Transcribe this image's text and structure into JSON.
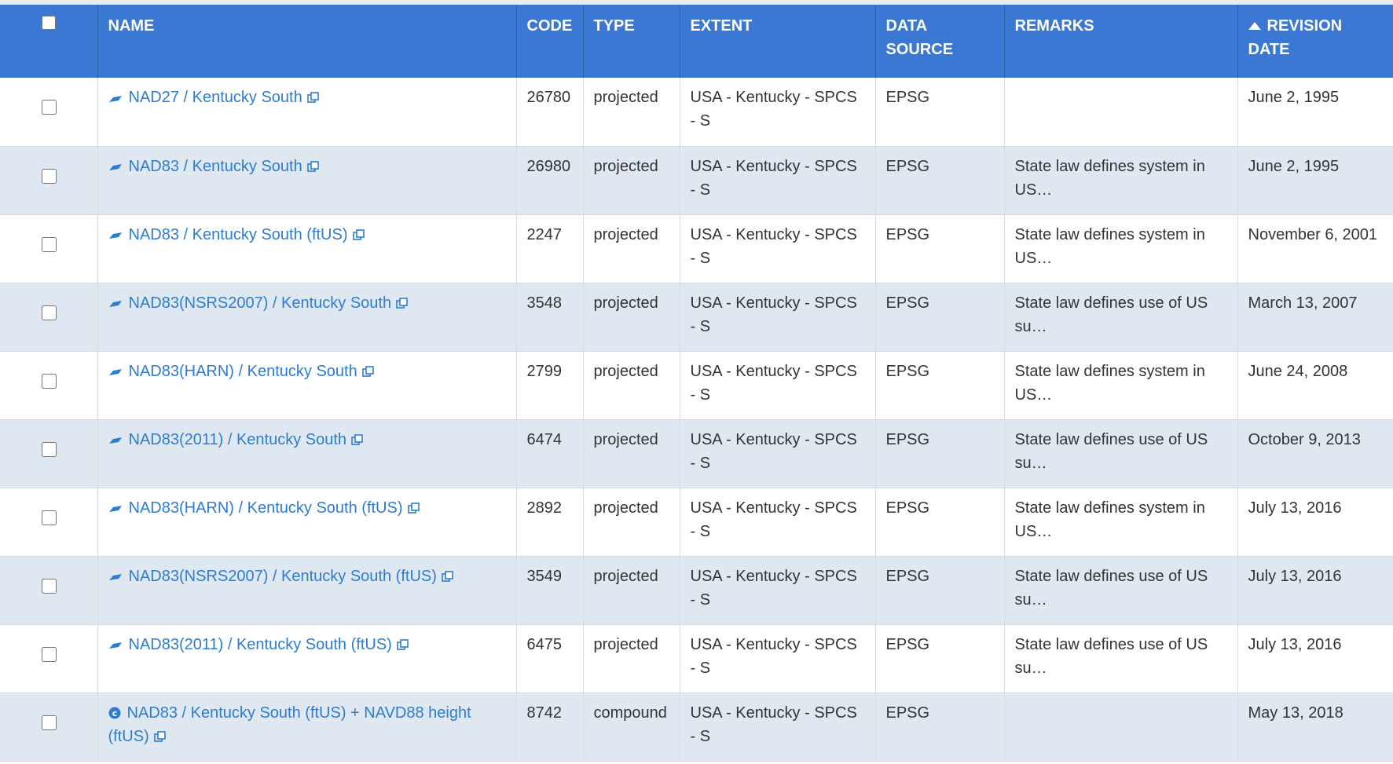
{
  "header": {
    "columns": [
      "NAME",
      "CODE",
      "TYPE",
      "EXTENT",
      "DATA SOURCE",
      "REMARKS",
      "REVISION DATE"
    ]
  },
  "table": {
    "rows": [
      {
        "name": "NAD27 / Kentucky South",
        "code": 26780,
        "type": "projected",
        "extent": "USA - Kentucky - SPCS - S",
        "source": "EPSG",
        "remarks": null,
        "date": "June 2, 1995"
      },
      {
        "name": "NAD83 / Kentucky South",
        "code": 26980,
        "type": "projected",
        "extent": "USA - Kentucky - SPCS - S",
        "source": "EPSG",
        "remarks": "State law defines system in US…",
        "date": "June 2, 1995"
      },
      {
        "name": "NAD83 / Kentucky South (ftUS)",
        "code": 2247,
        "type": "projected",
        "extent": "USA - Kentucky - SPCS - S",
        "source": "EPSG",
        "remarks": "State law defines system in US…",
        "date": "November 6, 2001"
      },
      {
        "name": "NAD83(NSRS2007) / Kentucky South",
        "code": 3548,
        "type": "projected",
        "extent": "USA - Kentucky - SPCS - S",
        "source": "EPSG",
        "remarks": "State law defines use of US su…",
        "date": "March 13, 2007"
      },
      {
        "name": "NAD83(HARN) / Kentucky South",
        "code": 2799,
        "type": "projected",
        "extent": "USA - Kentucky - SPCS - S",
        "source": "EPSG",
        "remarks": "State law defines system in US…",
        "date": "June 24, 2008"
      },
      {
        "name": "NAD83(2011) / Kentucky South",
        "code": 6474,
        "type": "projected",
        "extent": "USA - Kentucky - SPCS - S",
        "source": "EPSG",
        "remarks": "State law defines use of US su…",
        "date": "October 9, 2013"
      },
      {
        "name": "NAD83(HARN) / Kentucky South (ftUS)",
        "code": 2892,
        "type": "projected",
        "extent": "USA - Kentucky - SPCS - S",
        "source": "EPSG",
        "remarks": "State law defines system in US…",
        "date": "July 13, 2016"
      },
      {
        "name": "NAD83(NSRS2007) / Kentucky South (ftUS)",
        "code": 3549,
        "type": "projected",
        "extent": "USA - Kentucky - SPCS - S",
        "source": "EPSG",
        "remarks": "State law defines use of US su…",
        "date": "July 13, 2016"
      },
      {
        "name": "NAD83(2011) / Kentucky South (ftUS)",
        "code": 6475,
        "type": "projected",
        "extent": "USA - Kentucky - SPCS - S",
        "source": "EPSG",
        "remarks": "State law defines use of US su…",
        "date": "July 13, 2016"
      },
      {
        "name": "NAD83 / Kentucky South (ftUS) + NAVD88 height (ftUS)",
        "code": 8742,
        "type": "compound",
        "extent": "USA - Kentucky - SPCS - S",
        "source": "EPSG",
        "remarks": null,
        "date": "May 13, 2018"
      }
    ]
  }
}
